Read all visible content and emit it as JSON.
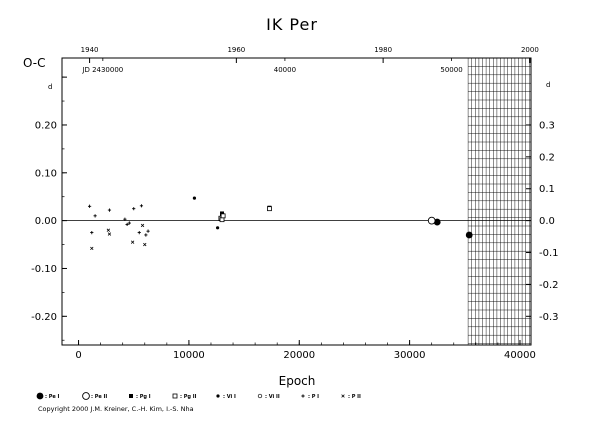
{
  "chart_data": {
    "type": "scatter",
    "title": "IK Per",
    "xlabel": "Epoch",
    "ylabel": "O-C",
    "ylabel_sup": "d",
    "xlim": [
      -1500,
      41000
    ],
    "ylim": [
      -0.26,
      0.34
    ],
    "x_ticks": [
      0,
      10000,
      20000,
      30000,
      40000
    ],
    "x_tick_labels": [
      "0",
      "10000",
      "20000",
      "30000",
      "40000"
    ],
    "y_ticks": [
      -0.2,
      -0.1,
      0.0,
      0.1,
      0.2,
      0.3
    ],
    "y_left_tick_labels": [
      "-0.20",
      "-0.10",
      "0.00",
      "0.10",
      "0.20",
      ""
    ],
    "y_right_tick_labels": [
      "-0.3",
      "-0.2",
      "-0.1",
      "0.0",
      "0.1",
      "0.2",
      "0.3"
    ],
    "y_right_ticks": [
      -0.3,
      -0.2,
      -0.1,
      0.0,
      0.1,
      0.2,
      0.3
    ],
    "right_axis_scale": 1.5,
    "top_year_axis": {
      "years": [
        "1940",
        "1960",
        "1980",
        "2000"
      ],
      "epochs": [
        1000,
        14300,
        27600,
        40900
      ]
    },
    "jd_axis": {
      "labels": [
        "JD 2430000",
        "40000",
        "50000"
      ],
      "epochs": [
        2200,
        18700,
        33800
      ]
    },
    "hatched_region": {
      "x_start": 35300,
      "x_end": 41000
    },
    "zero_line": 0.0,
    "series": [
      {
        "marker": "filled-circle-large",
        "legend": ": Pe I",
        "points": [
          [
            32500,
            -0.003
          ],
          [
            35400,
            -0.03
          ]
        ]
      },
      {
        "marker": "open-circle-large",
        "legend": ": Pe II",
        "points": [
          [
            32000,
            0.0
          ]
        ]
      },
      {
        "marker": "filled-square",
        "legend": ": Pg I",
        "points": [
          [
            13000,
            0.015
          ],
          [
            13000,
            0.012
          ],
          [
            17300,
            0.027
          ]
        ]
      },
      {
        "marker": "open-square",
        "legend": ": Pg II",
        "points": [
          [
            12900,
            0.005
          ],
          [
            13000,
            0.002
          ],
          [
            17300,
            0.025
          ],
          [
            13100,
            0.01
          ]
        ]
      },
      {
        "marker": "filled-circle-small",
        "legend": ": Vi I",
        "points": [
          [
            10500,
            0.047
          ],
          [
            12600,
            -0.015
          ]
        ]
      },
      {
        "marker": "open-circle-small",
        "legend": ": Vi II",
        "points": []
      },
      {
        "marker": "plus",
        "legend": ": P I",
        "points": [
          [
            1000,
            0.03
          ],
          [
            1500,
            0.01
          ],
          [
            2800,
            0.022
          ],
          [
            4200,
            0.003
          ],
          [
            4600,
            -0.005
          ],
          [
            5000,
            0.025
          ],
          [
            5700,
            0.031
          ],
          [
            5500,
            -0.025
          ],
          [
            6100,
            -0.03
          ],
          [
            6300,
            -0.022
          ],
          [
            1200,
            -0.025
          ],
          [
            4400,
            -0.008
          ]
        ]
      },
      {
        "marker": "cross",
        "legend": ": P II",
        "points": [
          [
            1200,
            -0.058
          ],
          [
            2700,
            -0.02
          ],
          [
            2800,
            -0.028
          ],
          [
            4900,
            -0.045
          ],
          [
            6000,
            -0.05
          ],
          [
            5800,
            -0.01
          ]
        ]
      }
    ]
  },
  "copyright": "Copyright 2000 J.M. Kreiner, C.-H. Kim, I.-S. Nha"
}
